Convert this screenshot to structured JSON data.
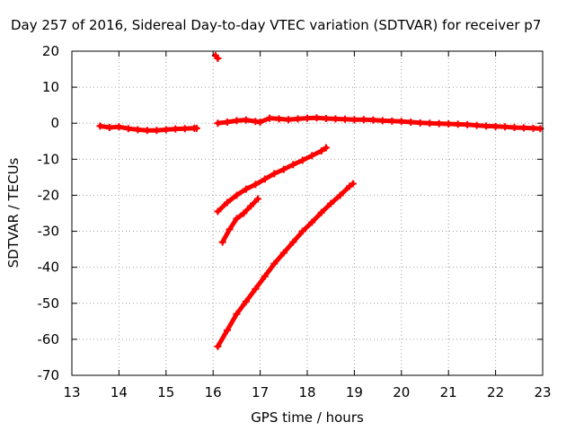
{
  "chart_data": {
    "type": "scatter",
    "title": "Day 257 of 2016, Sidereal Day-to-day VTEC variation (SDTVAR) for receiver p7",
    "xlabel": "GPS time / hours",
    "ylabel": "SDTVAR / TECUs",
    "xlim": [
      13,
      23
    ],
    "ylim": [
      -70,
      20
    ],
    "xticks": [
      "13",
      "14",
      "15",
      "16",
      "17",
      "18",
      "19",
      "20",
      "21",
      "22",
      "23"
    ],
    "yticks": [
      "20",
      "10",
      "0",
      "-10",
      "-20",
      "-30",
      "-40",
      "-50",
      "-60",
      "-70"
    ],
    "grid": true,
    "marker_color": "#ff0000",
    "series": [
      {
        "x": [
          13.6,
          13.8,
          14.0,
          14.2,
          14.4,
          14.6,
          14.8,
          15.0,
          15.2,
          15.4,
          15.6,
          15.65
        ],
        "y": [
          -0.8,
          -1.2,
          -1.0,
          -1.5,
          -1.8,
          -2.0,
          -2.0,
          -1.8,
          -1.6,
          -1.5,
          -1.4,
          -1.4
        ]
      },
      {
        "x": [
          16.05,
          16.1
        ],
        "y": [
          18.8,
          18.0
        ]
      },
      {
        "x": [
          16.1,
          16.3,
          16.5,
          16.7,
          16.9,
          17.0,
          17.2,
          17.4,
          17.6,
          17.8,
          18.0,
          18.2,
          18.4,
          18.6,
          18.8,
          19.0,
          19.2,
          19.4,
          19.6,
          19.8,
          20.0,
          20.2,
          20.4,
          20.6,
          20.8,
          21.0,
          21.2,
          21.4,
          21.6,
          21.8,
          22.0,
          22.2,
          22.4,
          22.6,
          22.8,
          22.95
        ],
        "y": [
          0.0,
          0.3,
          0.7,
          0.9,
          0.5,
          0.3,
          1.4,
          1.2,
          1.0,
          1.2,
          1.4,
          1.5,
          1.3,
          1.2,
          1.1,
          1.0,
          1.0,
          0.9,
          0.7,
          0.6,
          0.5,
          0.3,
          0.1,
          0.0,
          -0.1,
          -0.2,
          -0.3,
          -0.4,
          -0.6,
          -0.8,
          -0.9,
          -1.0,
          -1.2,
          -1.3,
          -1.4,
          -1.5
        ]
      },
      {
        "x": [
          16.1,
          16.3,
          16.5,
          16.7,
          16.9,
          17.1,
          17.3,
          17.5,
          17.7,
          17.9,
          18.1,
          18.3,
          18.4
        ],
        "y": [
          -24.5,
          -22.0,
          -20.0,
          -18.3,
          -17.0,
          -15.5,
          -14.0,
          -12.8,
          -11.5,
          -10.3,
          -9.0,
          -7.7,
          -6.8
        ]
      },
      {
        "x": [
          16.2,
          16.35,
          16.5,
          16.65,
          16.8,
          16.95
        ],
        "y": [
          -33.0,
          -29.5,
          -26.5,
          -25.0,
          -23.0,
          -21.0
        ]
      },
      {
        "x": [
          16.1,
          16.3,
          16.5,
          16.7,
          16.9,
          17.1,
          17.3,
          17.5,
          17.7,
          17.9,
          18.1,
          18.3,
          18.5,
          18.7,
          18.9,
          18.97
        ],
        "y": [
          -62.0,
          -57.5,
          -53.0,
          -49.5,
          -46.0,
          -42.5,
          -39.0,
          -36.0,
          -33.0,
          -30.0,
          -27.5,
          -24.8,
          -22.3,
          -20.0,
          -17.5,
          -16.8
        ]
      }
    ]
  }
}
